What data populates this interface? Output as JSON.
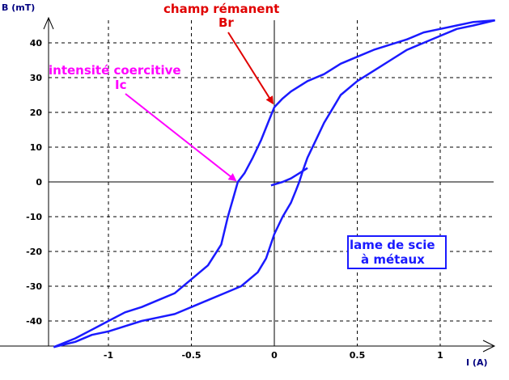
{
  "chart_data": {
    "type": "line",
    "title": "",
    "xlabel": "I (A)",
    "ylabel": "B (mT)",
    "xlim": [
      -1.35,
      1.35
    ],
    "ylim": [
      -47,
      47
    ],
    "xticks": [
      -1,
      -0.5,
      0,
      0.5,
      1
    ],
    "xtick_labels": [
      "-1",
      "-0.5",
      "0",
      "0.5",
      "1"
    ],
    "yticks": [
      -40,
      -30,
      -20,
      -10,
      0,
      10,
      20,
      30,
      40
    ],
    "ytick_labels": [
      "-40",
      "-30",
      "-20",
      "-10",
      "0",
      "10",
      "20",
      "30",
      "40"
    ],
    "grid": true,
    "legend": "none",
    "colors": {
      "curve": "#1a1aff",
      "remanent": "#e00000",
      "coercive": "#ff00ff",
      "grid": "#000000"
    },
    "series": [
      {
        "x": [
          1.33,
          1.2,
          1.1,
          1.0,
          0.9,
          0.8,
          0.6,
          0.5,
          0.4,
          0.3,
          0.2,
          0.1,
          0.05,
          0.02,
          0.0,
          -0.03,
          -0.08,
          -0.13,
          -0.18,
          -0.22,
          -0.25,
          -0.28,
          -0.32,
          -0.4,
          -0.5,
          -0.6,
          -0.7,
          -0.8,
          -0.9,
          -1.0,
          -1.1,
          -1.2,
          -1.33
        ],
        "y": [
          46.5,
          46,
          45,
          44,
          43,
          41,
          38,
          36,
          34,
          31,
          29,
          26,
          24,
          22.5,
          21.5,
          18,
          12,
          7,
          2.5,
          0,
          -5,
          -10,
          -18,
          -24,
          -28,
          -32,
          -34,
          -36,
          -37.5,
          -40,
          -42.5,
          -45,
          -47.5
        ]
      },
      {
        "x": [
          -1.33,
          -1.2,
          -1.1,
          -1.0,
          -0.9,
          -0.8,
          -0.7,
          -0.6,
          -0.5,
          -0.4,
          -0.3,
          -0.2,
          -0.1,
          -0.05,
          0.0,
          0.05,
          0.1,
          0.13,
          0.15,
          0.17,
          0.2,
          0.25,
          0.3,
          0.35,
          0.4,
          0.5,
          0.6,
          0.7,
          0.8,
          0.9,
          1.0,
          1.1,
          1.2,
          1.33
        ],
        "y": [
          -47.5,
          -46,
          -44,
          -43,
          -41.5,
          -40,
          -39,
          -38,
          -36,
          -34,
          -32,
          -30,
          -26,
          -22,
          -15,
          -10,
          -6,
          -2.5,
          0,
          3,
          7,
          12,
          17,
          21,
          25,
          29,
          32,
          35,
          38,
          40,
          42,
          44,
          45,
          46.5
        ]
      },
      {
        "x": [
          -0.02,
          0.05,
          0.1,
          0.15,
          0.2
        ],
        "y": [
          -1,
          0,
          1,
          2.5,
          4
        ]
      }
    ],
    "annotations": [
      {
        "text": "champ rémanent",
        "line2": "Br",
        "target_x": 0.0,
        "target_y": 21.5
      },
      {
        "text": "intensité coercitive",
        "line2": "Ic",
        "target_x": -0.22,
        "target_y": 0.0
      },
      {
        "text": "lame de scie",
        "line2": "à métaux"
      }
    ]
  }
}
